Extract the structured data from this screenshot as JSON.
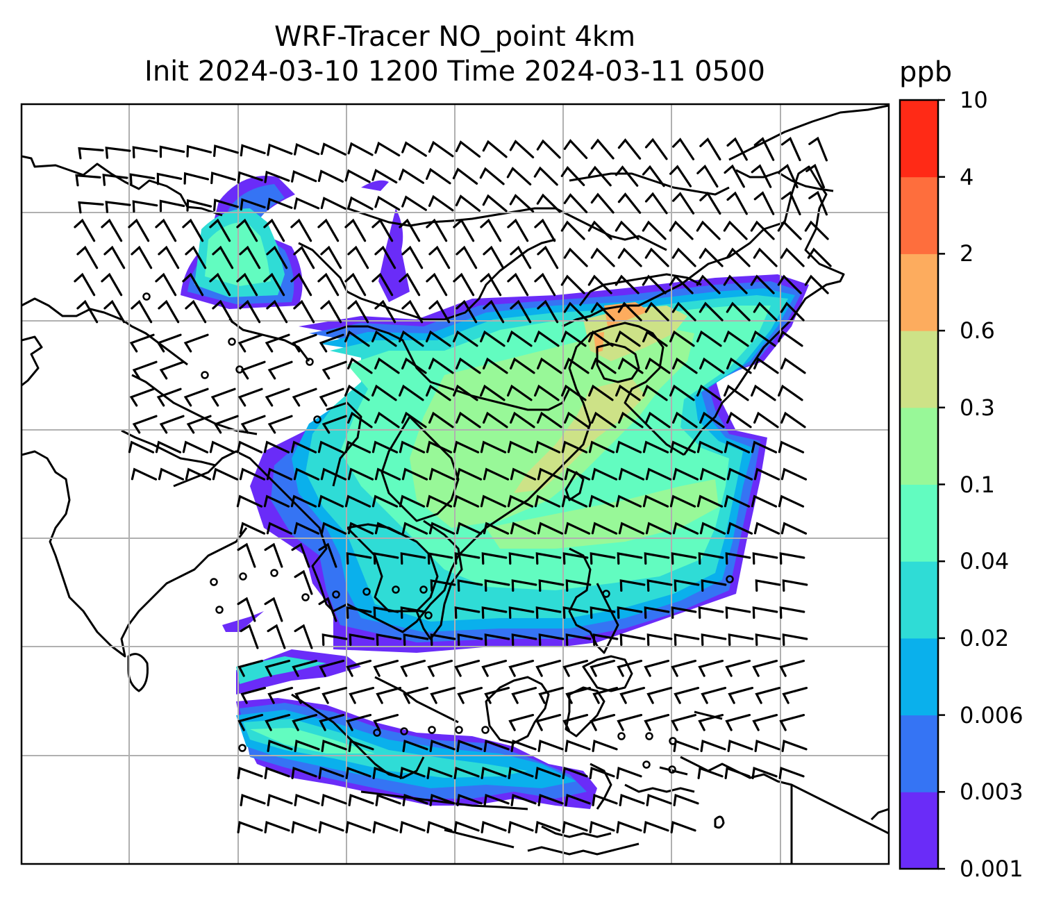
{
  "title": {
    "line1": "WRF-Tracer NO_point 4km",
    "line2": "Init 2024-03-10 1200 Time 2024-03-11 0500"
  },
  "colorbar": {
    "unit": "ppb",
    "levels": [
      "0.001",
      "0.003",
      "0.006",
      "0.02",
      "0.04",
      "0.1",
      "0.3",
      "0.6",
      "2",
      "4",
      "10"
    ],
    "colors": [
      "#6a2cf8",
      "#3574f4",
      "#0ab0ec",
      "#2fdcd6",
      "#62fcc0",
      "#98f898",
      "#cde287",
      "#fdac5e",
      "#fe6e3d",
      "#ff2a16"
    ]
  },
  "map": {
    "grid": true,
    "grid_color": "#b0b0b0",
    "coastline_color": "#000000",
    "overlay": "wind barbs",
    "calm_marker": "circle"
  }
}
